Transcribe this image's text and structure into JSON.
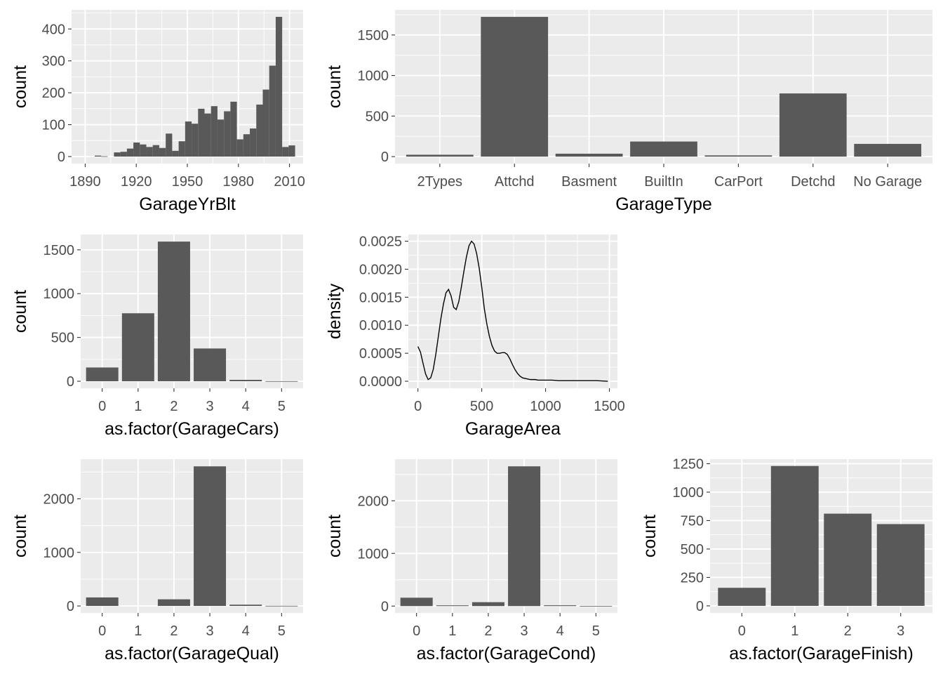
{
  "style": {
    "panel_bg": "#ebebeb",
    "grid_color": "#ffffff",
    "bar_fill": "#595959",
    "line_color": "#000000",
    "tick_color": "#4d4d4d",
    "title_color": "#000000"
  },
  "chart_data": [
    {
      "id": "garage-yr-blt",
      "type": "histogram",
      "xlabel": "GarageYrBlt",
      "ylabel": "count",
      "xlim": [
        1882,
        2018
      ],
      "ylim": [
        -22,
        460
      ],
      "x_ticks": [
        1890,
        1920,
        1950,
        1980,
        2010
      ],
      "x_tick_labels": [
        "1890",
        "1920",
        "1950",
        "1980",
        "2010"
      ],
      "y_ticks": [
        0,
        100,
        200,
        300,
        400
      ],
      "y_tick_labels": [
        "0",
        "100",
        "200",
        "300",
        "400"
      ],
      "grid": true,
      "bins": [
        {
          "x0": 1895.6,
          "x1": 1899.4,
          "count": 3
        },
        {
          "x0": 1899.4,
          "x1": 1903.2,
          "count": 1
        },
        {
          "x0": 1906.9,
          "x1": 1910.7,
          "count": 13
        },
        {
          "x0": 1910.7,
          "x1": 1914.5,
          "count": 15
        },
        {
          "x0": 1914.5,
          "x1": 1918.3,
          "count": 25
        },
        {
          "x0": 1918.3,
          "x1": 1922.1,
          "count": 44
        },
        {
          "x0": 1922.1,
          "x1": 1925.9,
          "count": 38
        },
        {
          "x0": 1925.9,
          "x1": 1929.7,
          "count": 30
        },
        {
          "x0": 1929.7,
          "x1": 1933.5,
          "count": 36
        },
        {
          "x0": 1933.5,
          "x1": 1937.3,
          "count": 27
        },
        {
          "x0": 1937.3,
          "x1": 1941.1,
          "count": 72
        },
        {
          "x0": 1941.1,
          "x1": 1944.9,
          "count": 18
        },
        {
          "x0": 1944.9,
          "x1": 1948.7,
          "count": 48
        },
        {
          "x0": 1948.7,
          "x1": 1952.5,
          "count": 110
        },
        {
          "x0": 1952.5,
          "x1": 1956.3,
          "count": 103
        },
        {
          "x0": 1956.3,
          "x1": 1960.1,
          "count": 150
        },
        {
          "x0": 1960.1,
          "x1": 1963.9,
          "count": 135
        },
        {
          "x0": 1963.9,
          "x1": 1967.7,
          "count": 158
        },
        {
          "x0": 1967.7,
          "x1": 1971.5,
          "count": 116
        },
        {
          "x0": 1971.5,
          "x1": 1975.3,
          "count": 142
        },
        {
          "x0": 1975.3,
          "x1": 1979.1,
          "count": 172
        },
        {
          "x0": 1979.1,
          "x1": 1982.9,
          "count": 54
        },
        {
          "x0": 1982.9,
          "x1": 1986.7,
          "count": 70
        },
        {
          "x0": 1986.7,
          "x1": 1990.5,
          "count": 88
        },
        {
          "x0": 1990.5,
          "x1": 1994.3,
          "count": 163
        },
        {
          "x0": 1994.3,
          "x1": 1998.1,
          "count": 210
        },
        {
          "x0": 1998.1,
          "x1": 2001.9,
          "count": 285
        },
        {
          "x0": 2001.9,
          "x1": 2005.7,
          "count": 438
        },
        {
          "x0": 2005.7,
          "x1": 2009.5,
          "count": 30
        },
        {
          "x0": 2009.5,
          "x1": 2013.3,
          "count": 35
        }
      ]
    },
    {
      "id": "garage-type",
      "type": "bar",
      "xlabel": "GarageType",
      "ylabel": "count",
      "categories": [
        "2Types",
        "Attchd",
        "Basment",
        "BuiltIn",
        "CarPort",
        "Detchd",
        "No Garage"
      ],
      "values": [
        23,
        1723,
        36,
        186,
        15,
        779,
        157
      ],
      "ylim": [
        -86,
        1810
      ],
      "y_ticks": [
        0,
        500,
        1000,
        1500
      ],
      "y_tick_labels": [
        "0",
        "500",
        "1000",
        "1500"
      ],
      "grid": true
    },
    {
      "id": "garage-cars",
      "type": "bar",
      "xlabel": "as.factor(GarageCars)",
      "ylabel": "count",
      "categories": [
        "0",
        "1",
        "2",
        "3",
        "4",
        "5"
      ],
      "values": [
        157,
        776,
        1594,
        374,
        16,
        1
      ],
      "ylim": [
        -80,
        1675
      ],
      "y_ticks": [
        0,
        500,
        1000,
        1500
      ],
      "y_tick_labels": [
        "0",
        "500",
        "1000",
        "1500"
      ],
      "grid": true
    },
    {
      "id": "garage-area",
      "type": "line",
      "xlabel": "GarageArea",
      "ylabel": "density",
      "xlim": [
        -75,
        1563
      ],
      "ylim": [
        -0.000125,
        0.00262
      ],
      "x_ticks": [
        0,
        500,
        1000,
        1500
      ],
      "x_tick_labels": [
        "0",
        "500",
        "1000",
        "1500"
      ],
      "y_ticks": [
        0,
        0.0005,
        0.001,
        0.0015,
        0.002,
        0.0025
      ],
      "y_tick_labels": [
        "0.0000",
        "0.0005",
        "0.0010",
        "0.0015",
        "0.0020",
        "0.0025"
      ],
      "grid": true,
      "x": [
        0,
        20,
        40,
        60,
        80,
        100,
        120,
        140,
        160,
        180,
        200,
        220,
        240,
        260,
        280,
        300,
        320,
        340,
        360,
        380,
        400,
        420,
        440,
        460,
        480,
        500,
        520,
        540,
        560,
        580,
        600,
        620,
        640,
        660,
        680,
        700,
        720,
        740,
        760,
        780,
        800,
        820,
        840,
        860,
        880,
        900,
        920,
        940,
        960,
        980,
        1000,
        1050,
        1100,
        1150,
        1200,
        1300,
        1400,
        1488
      ],
      "y": [
        0.00062,
        0.00052,
        0.00032,
        0.00013,
        3e-05,
        6e-05,
        0.00021,
        0.00048,
        0.0008,
        0.00112,
        0.00138,
        0.00158,
        0.00164,
        0.00152,
        0.00132,
        0.00128,
        0.00142,
        0.00168,
        0.00196,
        0.00222,
        0.00242,
        0.0025,
        0.00245,
        0.00228,
        0.00202,
        0.00168,
        0.0013,
        0.00102,
        0.0008,
        0.00064,
        0.00054,
        0.0005,
        0.0005,
        0.00051,
        0.00051,
        0.00048,
        0.0004,
        0.0003,
        0.00021,
        0.00014,
        9e-05,
        6e-05,
        5e-05,
        4e-05,
        3e-05,
        3e-05,
        3e-05,
        2e-05,
        2e-05,
        2e-05,
        2e-05,
        2e-05,
        1e-05,
        1e-05,
        1e-05,
        1e-05,
        1e-05,
        0.0
      ]
    },
    {
      "id": "garage-qual",
      "type": "bar",
      "xlabel": "as.factor(GarageQual)",
      "ylabel": "count",
      "categories": [
        "0",
        "1",
        "2",
        "3",
        "4",
        "5"
      ],
      "values": [
        159,
        0,
        124,
        2606,
        24,
        3
      ],
      "ylim": [
        -130,
        2740
      ],
      "y_ticks": [
        0,
        1000,
        2000
      ],
      "y_tick_labels": [
        "0",
        "1000",
        "2000"
      ],
      "grid": true
    },
    {
      "id": "garage-cond",
      "type": "bar",
      "xlabel": "as.factor(GarageCond)",
      "ylabel": "count",
      "categories": [
        "0",
        "1",
        "2",
        "3",
        "4",
        "5"
      ],
      "values": [
        159,
        14,
        74,
        2654,
        15,
        3
      ],
      "ylim": [
        -130,
        2790
      ],
      "y_ticks": [
        0,
        1000,
        2000
      ],
      "y_tick_labels": [
        "0",
        "1000",
        "2000"
      ],
      "grid": true
    },
    {
      "id": "garage-finish",
      "type": "bar",
      "xlabel": "as.factor(GarageFinish)",
      "ylabel": "count",
      "categories": [
        "0",
        "1",
        "2",
        "3"
      ],
      "values": [
        159,
        1230,
        811,
        719
      ],
      "ylim": [
        -62,
        1290
      ],
      "y_ticks": [
        0,
        250,
        500,
        750,
        1000,
        1250
      ],
      "y_tick_labels": [
        "0",
        "250",
        "500",
        "750",
        "1000",
        "1250"
      ],
      "grid": true
    }
  ]
}
